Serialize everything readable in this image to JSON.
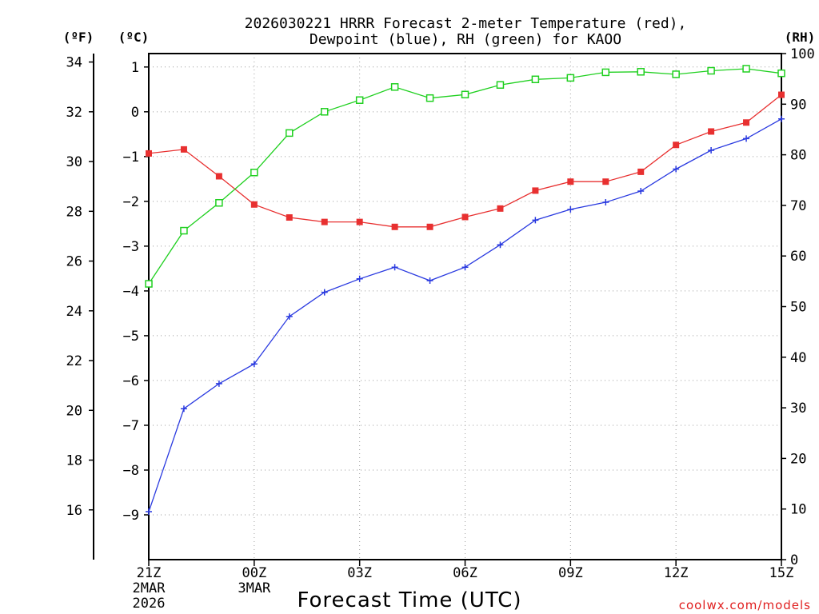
{
  "chart_data": {
    "type": "line",
    "title_line1": "2026030221 HRRR Forecast 2-meter Temperature (red),",
    "title_line2": "Dewpoint (blue), RH (green) for KAOO",
    "xlabel": "Forecast Time (UTC)",
    "credit": "coolwx.com/models",
    "units": {
      "f": "(ºF)",
      "c": "(ºC)",
      "rh": "(RH)"
    },
    "x_hours": [
      0,
      1,
      2,
      3,
      4,
      5,
      6,
      7,
      8,
      9,
      10,
      11,
      12,
      13,
      14,
      15,
      16,
      17,
      18
    ],
    "xlim": [
      0,
      18
    ],
    "x_ticks": [
      {
        "hour": 0,
        "label": "21Z",
        "sub1": "2MAR",
        "sub2": "2026"
      },
      {
        "hour": 3,
        "label": "00Z",
        "sub1": "3MAR",
        "sub2": ""
      },
      {
        "hour": 6,
        "label": "03Z",
        "sub1": "",
        "sub2": ""
      },
      {
        "hour": 9,
        "label": "06Z",
        "sub1": "",
        "sub2": ""
      },
      {
        "hour": 12,
        "label": "09Z",
        "sub1": "",
        "sub2": ""
      },
      {
        "hour": 15,
        "label": "12Z",
        "sub1": "",
        "sub2": ""
      },
      {
        "hour": 18,
        "label": "15Z",
        "sub1": "",
        "sub2": ""
      }
    ],
    "celsius_axis": {
      "ylim": [
        -10,
        1.3
      ],
      "ticks": [
        1,
        0,
        -1,
        -2,
        -3,
        -4,
        -5,
        -6,
        -7,
        -8,
        -9
      ],
      "tick_labels": [
        "1",
        "0",
        "−1",
        "−2",
        "−3",
        "−4",
        "−5",
        "−6",
        "−7",
        "−8",
        "−9"
      ]
    },
    "fahrenheit_axis": {
      "ticks": [
        34,
        32,
        30,
        28,
        26,
        24,
        22,
        20,
        18,
        16
      ],
      "tick_labels": [
        "34",
        "32",
        "30",
        "28",
        "26",
        "24",
        "22",
        "20",
        "18",
        "16"
      ]
    },
    "rh_axis": {
      "ylim": [
        0,
        100
      ],
      "ticks": [
        100,
        90,
        80,
        70,
        60,
        50,
        40,
        30,
        20,
        10,
        0
      ],
      "tick_labels": [
        "100",
        "90",
        "80",
        "70",
        "60",
        "50",
        "40",
        "30",
        "20",
        "10",
        "0"
      ]
    },
    "series": [
      {
        "name": "Temperature",
        "axis": "celsius",
        "color": "#e83030",
        "marker": "filled-square",
        "values": [
          -0.93,
          -0.84,
          -1.44,
          -2.07,
          -2.36,
          -2.46,
          -2.46,
          -2.57,
          -2.57,
          -2.35,
          -2.16,
          -1.76,
          -1.56,
          -1.56,
          -1.34,
          -0.74,
          -0.44,
          -0.24,
          0.38
        ]
      },
      {
        "name": "Dewpoint",
        "axis": "celsius",
        "color": "#2a3ae0",
        "marker": "plus",
        "values": [
          -8.93,
          -6.63,
          -6.07,
          -5.63,
          -4.57,
          -4.03,
          -3.73,
          -3.47,
          -3.77,
          -3.47,
          -2.97,
          -2.42,
          -2.18,
          -2.02,
          -1.77,
          -1.28,
          -0.86,
          -0.6,
          -0.16
        ]
      },
      {
        "name": "RH",
        "axis": "rh",
        "color": "#20d020",
        "marker": "open-square",
        "values": [
          54.5,
          65,
          70.5,
          76.5,
          84.3,
          88.5,
          90.8,
          93.4,
          91.2,
          91.9,
          93.8,
          94.9,
          95.2,
          96.3,
          96.4,
          95.9,
          96.6,
          97,
          96.1
        ]
      }
    ]
  }
}
